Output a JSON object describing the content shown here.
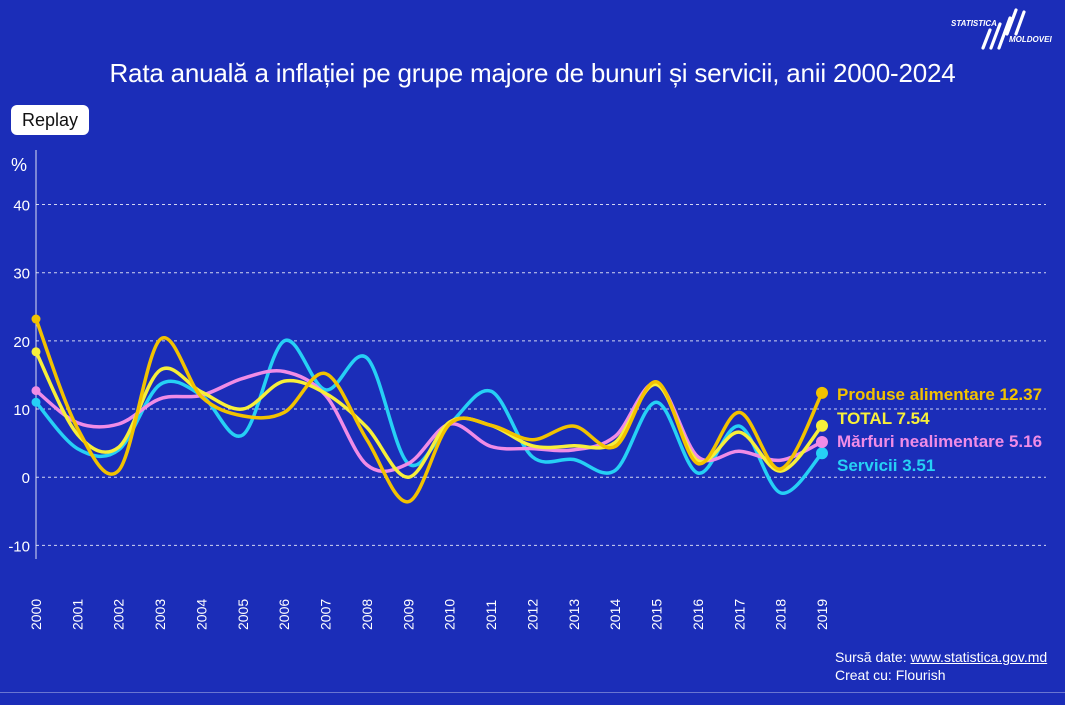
{
  "title": "Rata anuală a inflației pe grupe majore de bunuri și servicii, anii 2000-2024",
  "replay_label": "Replay",
  "logo": {
    "line1": "STATISTICA",
    "line2": "MOLDOVEI"
  },
  "source": {
    "label": "Sursă date: ",
    "link_text": "www.statistica.gov.md",
    "created_with": "Creat cu: Flourish"
  },
  "colors": {
    "background": "#1b2db8",
    "produse_alimentare": "#f2c200",
    "total": "#f7ef3a",
    "marfuri_nealimentare": "#f08ce6",
    "servicii": "#26d0f5"
  },
  "chart_data": {
    "type": "line",
    "ylabel": "%",
    "ylim": [
      -12,
      48
    ],
    "yticks": [
      -10,
      0,
      10,
      20,
      30,
      40
    ],
    "grid": true,
    "x": [
      "2000",
      "2001",
      "2002",
      "2003",
      "2004",
      "2005",
      "2006",
      "2007",
      "2008",
      "2009",
      "2010",
      "2011",
      "2012",
      "2013",
      "2014",
      "2015",
      "2016",
      "2017",
      "2018",
      "2019"
    ],
    "series": [
      {
        "name": "Produse alimentare",
        "color": "#f2c200",
        "end_label": "Produse alimentare 12.37",
        "values": [
          23.2,
          7.2,
          1.0,
          20.2,
          11.8,
          9.0,
          9.5,
          15.2,
          5.5,
          -3.6,
          7.8,
          7.6,
          5.5,
          7.5,
          4.5,
          14.0,
          2.0,
          9.5,
          1.2,
          12.37
        ]
      },
      {
        "name": "TOTAL",
        "color": "#f7ef3a",
        "end_label": "TOTAL 7.54",
        "values": [
          18.4,
          6.3,
          4.4,
          15.7,
          12.5,
          10.0,
          14.1,
          12.3,
          7.3,
          0.0,
          8.1,
          7.6,
          4.6,
          4.6,
          5.1,
          13.6,
          2.4,
          6.6,
          0.9,
          7.54
        ]
      },
      {
        "name": "Mărfuri nealimentare",
        "color": "#f08ce6",
        "end_label": "Mărfuri nealimentare 5.16",
        "values": [
          12.7,
          8.0,
          7.8,
          11.5,
          12.0,
          14.5,
          15.5,
          12.0,
          1.8,
          2.0,
          7.8,
          4.5,
          4.2,
          4.0,
          6.0,
          13.8,
          3.0,
          3.8,
          2.5,
          5.16
        ]
      },
      {
        "name": "Servicii",
        "color": "#26d0f5",
        "end_label": "Servicii 3.51",
        "values": [
          11.0,
          4.2,
          4.0,
          13.6,
          12.0,
          6.2,
          20.0,
          12.8,
          17.5,
          2.0,
          7.8,
          12.6,
          3.0,
          2.6,
          1.0,
          11.0,
          0.6,
          7.5,
          -2.3,
          3.51
        ]
      }
    ]
  }
}
